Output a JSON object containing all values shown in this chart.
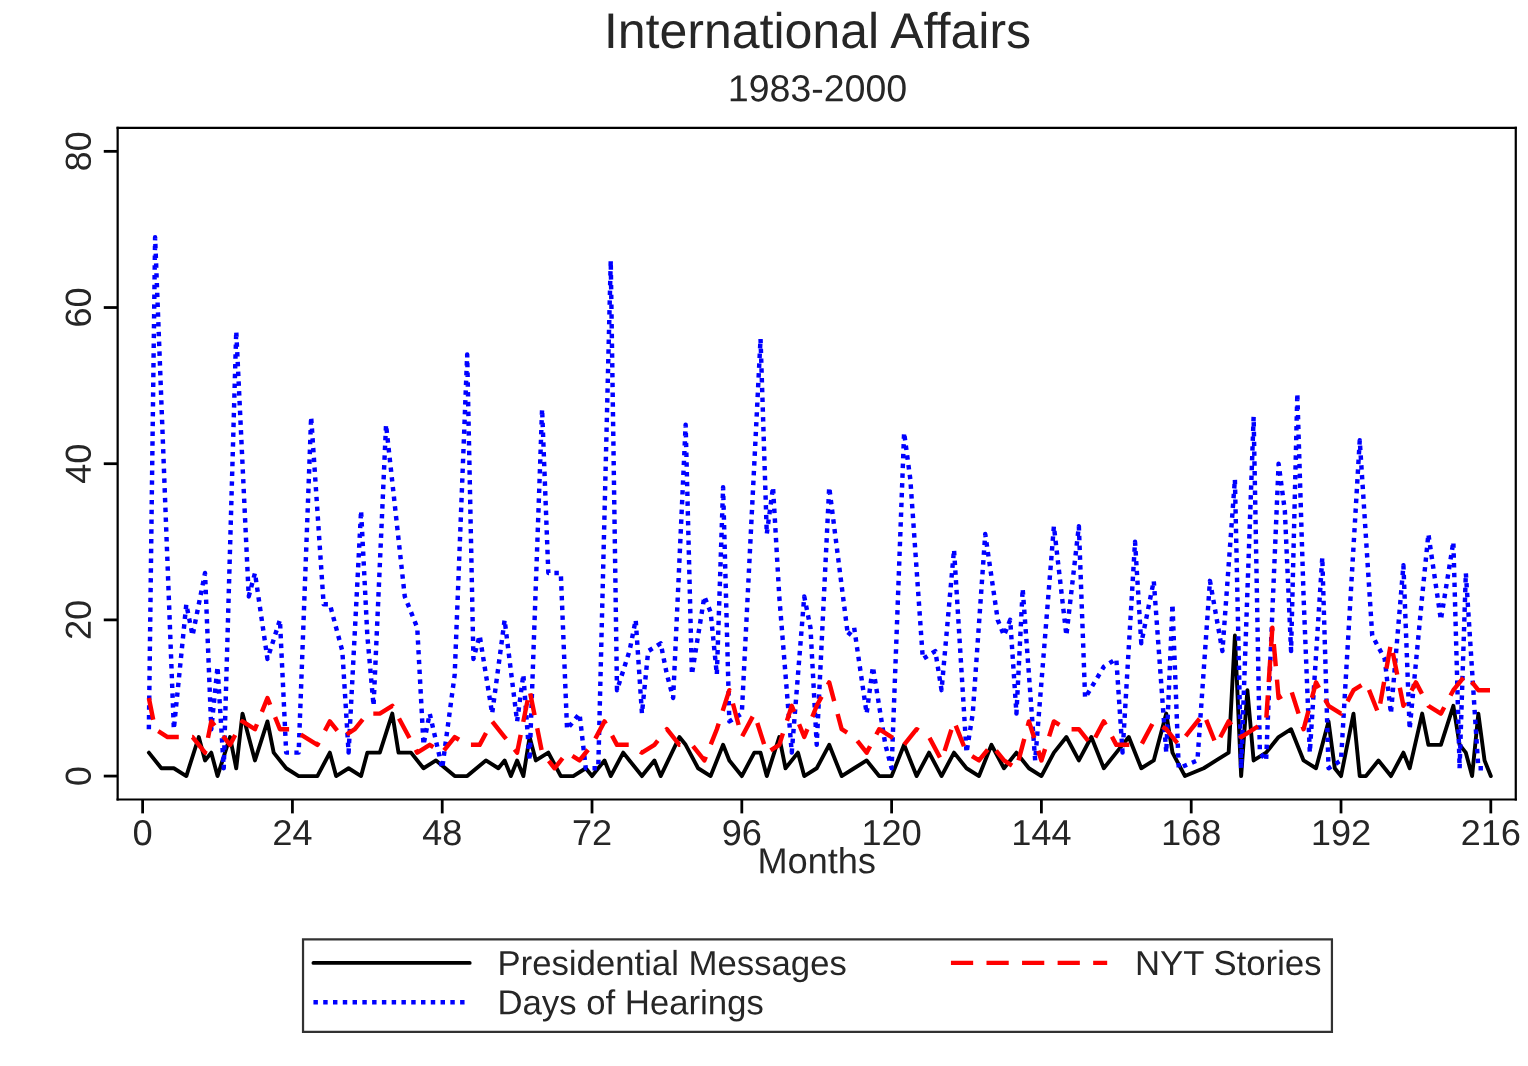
{
  "chart_data": {
    "type": "line",
    "title": "International Affairs",
    "subtitle": "1983-2000",
    "xlabel": "Months",
    "xlim": [
      -4,
      220
    ],
    "xticks": [
      0,
      24,
      48,
      72,
      96,
      120,
      144,
      168,
      192,
      216
    ],
    "ylim": [
      -3,
      83
    ],
    "yticks": [
      0,
      20,
      40,
      60,
      80
    ],
    "grid": false,
    "legend": "bottom",
    "marker": "none",
    "series": [
      {
        "name": "Presidential Messages",
        "color": "#000000",
        "line_style": "solid",
        "x": [
          1,
          3,
          5,
          7,
          9,
          10,
          11,
          12,
          14,
          15,
          16,
          18,
          20,
          21,
          23,
          25,
          28,
          30,
          31,
          33,
          35,
          36,
          38,
          40,
          41,
          43,
          45,
          47,
          50,
          52,
          55,
          57,
          58,
          59,
          60,
          61,
          62,
          63,
          65,
          67,
          69,
          71,
          72,
          74,
          75,
          77,
          78,
          80,
          82,
          83,
          86,
          87,
          89,
          91,
          93,
          94,
          96,
          98,
          99,
          100,
          102,
          103,
          105,
          106,
          108,
          110,
          112,
          114,
          116,
          118,
          120,
          122,
          124,
          126,
          128,
          130,
          132,
          134,
          136,
          138,
          140,
          142,
          144,
          146,
          148,
          150,
          152,
          154,
          156,
          158,
          160,
          162,
          164,
          165,
          167,
          170,
          172,
          174,
          175,
          176,
          177,
          178,
          180,
          181,
          182,
          184,
          186,
          188,
          190,
          191,
          192,
          194,
          195,
          196,
          198,
          200,
          202,
          203,
          205,
          206,
          208,
          210,
          211,
          212,
          213,
          214,
          215,
          216
        ],
        "values": [
          3,
          1,
          1,
          0,
          5,
          2,
          3,
          0,
          5,
          1,
          8,
          2,
          7,
          3,
          1,
          0,
          0,
          3,
          0,
          1,
          0,
          3,
          3,
          8,
          3,
          3,
          1,
          2,
          0,
          0,
          2,
          1,
          2,
          0,
          2,
          0,
          5,
          2,
          3,
          0,
          0,
          1,
          0,
          2,
          0,
          3,
          2,
          0,
          2,
          0,
          5,
          4,
          1,
          0,
          4,
          2,
          0,
          3,
          3,
          0,
          5,
          1,
          3,
          0,
          1,
          4,
          0,
          1,
          2,
          0,
          0,
          4,
          0,
          3,
          0,
          3,
          1,
          0,
          4,
          1,
          3,
          1,
          0,
          3,
          5,
          2,
          5,
          1,
          3,
          5,
          1,
          2,
          8,
          3,
          0,
          1,
          2,
          3,
          18,
          0,
          11,
          2,
          3,
          4,
          5,
          6,
          2,
          1,
          7,
          1,
          0,
          8,
          0,
          0,
          2,
          0,
          3,
          1,
          8,
          4,
          4,
          9,
          4,
          3,
          0,
          8,
          2,
          0
        ]
      },
      {
        "name": "Days of Hearings",
        "color": "#0000ff",
        "line_style": "dotted",
        "x": [
          1,
          2,
          5,
          7,
          8,
          10,
          11,
          12,
          13,
          15,
          17,
          18,
          20,
          22,
          23,
          25,
          27,
          29,
          30,
          32,
          33,
          35,
          36,
          37,
          39,
          42,
          44,
          45,
          46,
          48,
          50,
          52,
          53,
          54,
          56,
          58,
          60,
          61,
          62,
          64,
          65,
          67,
          68,
          70,
          71,
          73,
          75,
          76,
          78,
          79,
          80,
          81,
          83,
          84,
          85,
          87,
          88,
          90,
          91,
          92,
          93,
          94,
          96,
          99,
          100,
          101,
          102,
          104,
          106,
          107,
          108,
          110,
          113,
          114,
          116,
          117,
          119,
          120,
          122,
          123,
          125,
          127,
          128,
          130,
          132,
          133,
          135,
          137,
          138,
          139,
          140,
          141,
          143,
          146,
          148,
          150,
          151,
          154,
          156,
          157,
          159,
          160,
          162,
          164,
          165,
          166,
          169,
          171,
          173,
          175,
          176,
          178,
          179,
          180,
          182,
          183,
          184,
          185,
          186,
          187,
          189,
          190,
          192,
          195,
          197,
          199,
          200,
          202,
          203,
          205,
          206,
          208,
          210,
          211,
          212,
          214,
          215
        ],
        "values": [
          6,
          69,
          6,
          22,
          18,
          26,
          6,
          14,
          1,
          57,
          23,
          26,
          15,
          20,
          3,
          3,
          46,
          22,
          22,
          16,
          3,
          34,
          18,
          9,
          45,
          23,
          19,
          4,
          8,
          1,
          13,
          54,
          15,
          18,
          8,
          20,
          7,
          13,
          2,
          47,
          26,
          26,
          6,
          8,
          1,
          1,
          66,
          11,
          16,
          20,
          8,
          16,
          17,
          13,
          10,
          45,
          13,
          23,
          21,
          13,
          37,
          7,
          8,
          56,
          31,
          37,
          23,
          3,
          23,
          19,
          4,
          37,
          18,
          19,
          8,
          14,
          4,
          1,
          44,
          38,
          15,
          16,
          11,
          29,
          3,
          8,
          31,
          20,
          18,
          20,
          8,
          24,
          2,
          32,
          18,
          32,
          10,
          14,
          15,
          3,
          30,
          17,
          25,
          3,
          22,
          1,
          2,
          25,
          16,
          38,
          1,
          46,
          3,
          2,
          40,
          34,
          16,
          49,
          23,
          3,
          28,
          1,
          2,
          43,
          18,
          15,
          8,
          27,
          6,
          23,
          31,
          20,
          30,
          1,
          26,
          1,
          1
        ]
      },
      {
        "name": "NYT Stories",
        "color": "#ff0000",
        "line_style": "dashed",
        "x": [
          1,
          2,
          4,
          6,
          8,
          10,
          11,
          13,
          14,
          16,
          18,
          20,
          22,
          24,
          26,
          28,
          30,
          32,
          34,
          36,
          38,
          40,
          42,
          44,
          46,
          48,
          50,
          52,
          54,
          56,
          58,
          60,
          62,
          64,
          66,
          68,
          70,
          72,
          74,
          76,
          78,
          80,
          82,
          84,
          86,
          88,
          90,
          92,
          94,
          96,
          98,
          100,
          102,
          104,
          106,
          108,
          110,
          112,
          114,
          116,
          118,
          120,
          122,
          124,
          126,
          128,
          130,
          132,
          134,
          136,
          138,
          140,
          142,
          144,
          146,
          148,
          150,
          152,
          154,
          156,
          158,
          160,
          162,
          164,
          166,
          168,
          170,
          172,
          174,
          176,
          178,
          180,
          181,
          182,
          184,
          186,
          188,
          190,
          192,
          194,
          196,
          198,
          200,
          202,
          204,
          206,
          208,
          210,
          212,
          214,
          216
        ],
        "values": [
          10,
          6,
          5,
          5,
          5,
          3,
          7,
          5,
          4,
          7,
          6,
          10,
          6,
          6,
          5,
          4,
          7,
          5,
          6,
          8,
          8,
          9,
          6,
          3,
          4,
          3,
          5,
          4,
          4,
          7,
          5,
          3,
          11,
          3,
          1,
          3,
          2,
          4,
          7,
          4,
          4,
          3,
          4,
          6,
          4,
          4,
          2,
          6,
          11,
          5,
          8,
          3,
          4,
          9,
          5,
          9,
          12,
          6,
          5,
          3,
          6,
          5,
          4,
          6,
          5,
          2,
          7,
          3,
          2,
          4,
          2,
          1,
          7,
          2,
          7,
          6,
          6,
          4,
          7,
          4,
          4,
          4,
          7,
          6,
          4,
          6,
          8,
          4,
          7,
          5,
          6,
          7,
          19,
          10,
          11,
          6,
          12,
          9,
          8,
          11,
          12,
          8,
          17,
          9,
          12,
          9,
          8,
          11,
          13,
          11,
          11
        ]
      }
    ]
  }
}
